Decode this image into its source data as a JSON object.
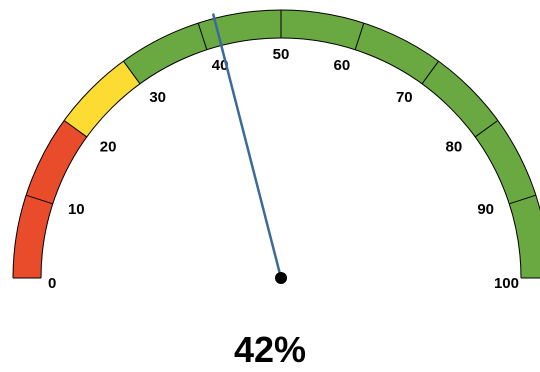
{
  "chart_data": {
    "type": "gauge",
    "min": 0,
    "max": 100,
    "value": 42,
    "value_label": "42%",
    "bands": [
      {
        "from": 0,
        "to": 20,
        "color": "#e84c2b"
      },
      {
        "from": 20,
        "to": 30,
        "color": "#fcdb33"
      },
      {
        "from": 30,
        "to": 100,
        "color": "#6aa842"
      }
    ],
    "ticks": [
      0,
      10,
      20,
      30,
      40,
      50,
      60,
      70,
      80,
      90,
      100
    ],
    "tick_labels": [
      "0",
      "10",
      "20",
      "30",
      "40",
      "50",
      "60",
      "70",
      "80",
      "90",
      "100"
    ],
    "needle_color": "#3a6a9c",
    "hub_color": "#000000"
  }
}
